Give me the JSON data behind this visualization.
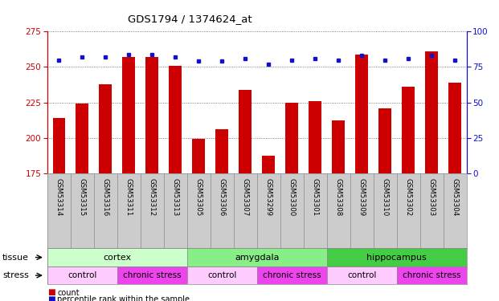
{
  "title": "GDS1794 / 1374624_at",
  "samples": [
    "GSM53314",
    "GSM53315",
    "GSM53316",
    "GSM53311",
    "GSM53312",
    "GSM53313",
    "GSM53305",
    "GSM53306",
    "GSM53307",
    "GSM53299",
    "GSM53300",
    "GSM53301",
    "GSM53308",
    "GSM53309",
    "GSM53310",
    "GSM53302",
    "GSM53303",
    "GSM53304"
  ],
  "counts": [
    214,
    224,
    238,
    257,
    257,
    251,
    199,
    206,
    234,
    187,
    225,
    226,
    212,
    259,
    221,
    236,
    261,
    239
  ],
  "percentiles": [
    80,
    82,
    82,
    84,
    84,
    82,
    79,
    79,
    81,
    77,
    80,
    81,
    80,
    83,
    80,
    81,
    83,
    80
  ],
  "ylim_left": [
    175,
    275
  ],
  "ylim_right": [
    0,
    100
  ],
  "yticks_left": [
    175,
    200,
    225,
    250,
    275
  ],
  "yticks_right": [
    0,
    25,
    50,
    75,
    100
  ],
  "bar_color": "#cc0000",
  "dot_color": "#1111cc",
  "tissue_groups": [
    {
      "label": "cortex",
      "start": 0,
      "end": 6,
      "color": "#ccffcc"
    },
    {
      "label": "amygdala",
      "start": 6,
      "end": 12,
      "color": "#88ee88"
    },
    {
      "label": "hippocampus",
      "start": 12,
      "end": 18,
      "color": "#44cc44"
    }
  ],
  "stress_groups": [
    {
      "label": "control",
      "start": 0,
      "end": 3,
      "color": "#ffccff"
    },
    {
      "label": "chronic stress",
      "start": 3,
      "end": 6,
      "color": "#ee44ee"
    },
    {
      "label": "control",
      "start": 6,
      "end": 9,
      "color": "#ffccff"
    },
    {
      "label": "chronic stress",
      "start": 9,
      "end": 12,
      "color": "#ee44ee"
    },
    {
      "label": "control",
      "start": 12,
      "end": 15,
      "color": "#ffccff"
    },
    {
      "label": "chronic stress",
      "start": 15,
      "end": 18,
      "color": "#ee44ee"
    }
  ],
  "sample_bg_color": "#cccccc",
  "fig_bg_color": "#ffffff",
  "left_axis_color": "#cc0000",
  "right_axis_color": "#1111cc",
  "grid_color": "#555555",
  "border_color": "#888888"
}
